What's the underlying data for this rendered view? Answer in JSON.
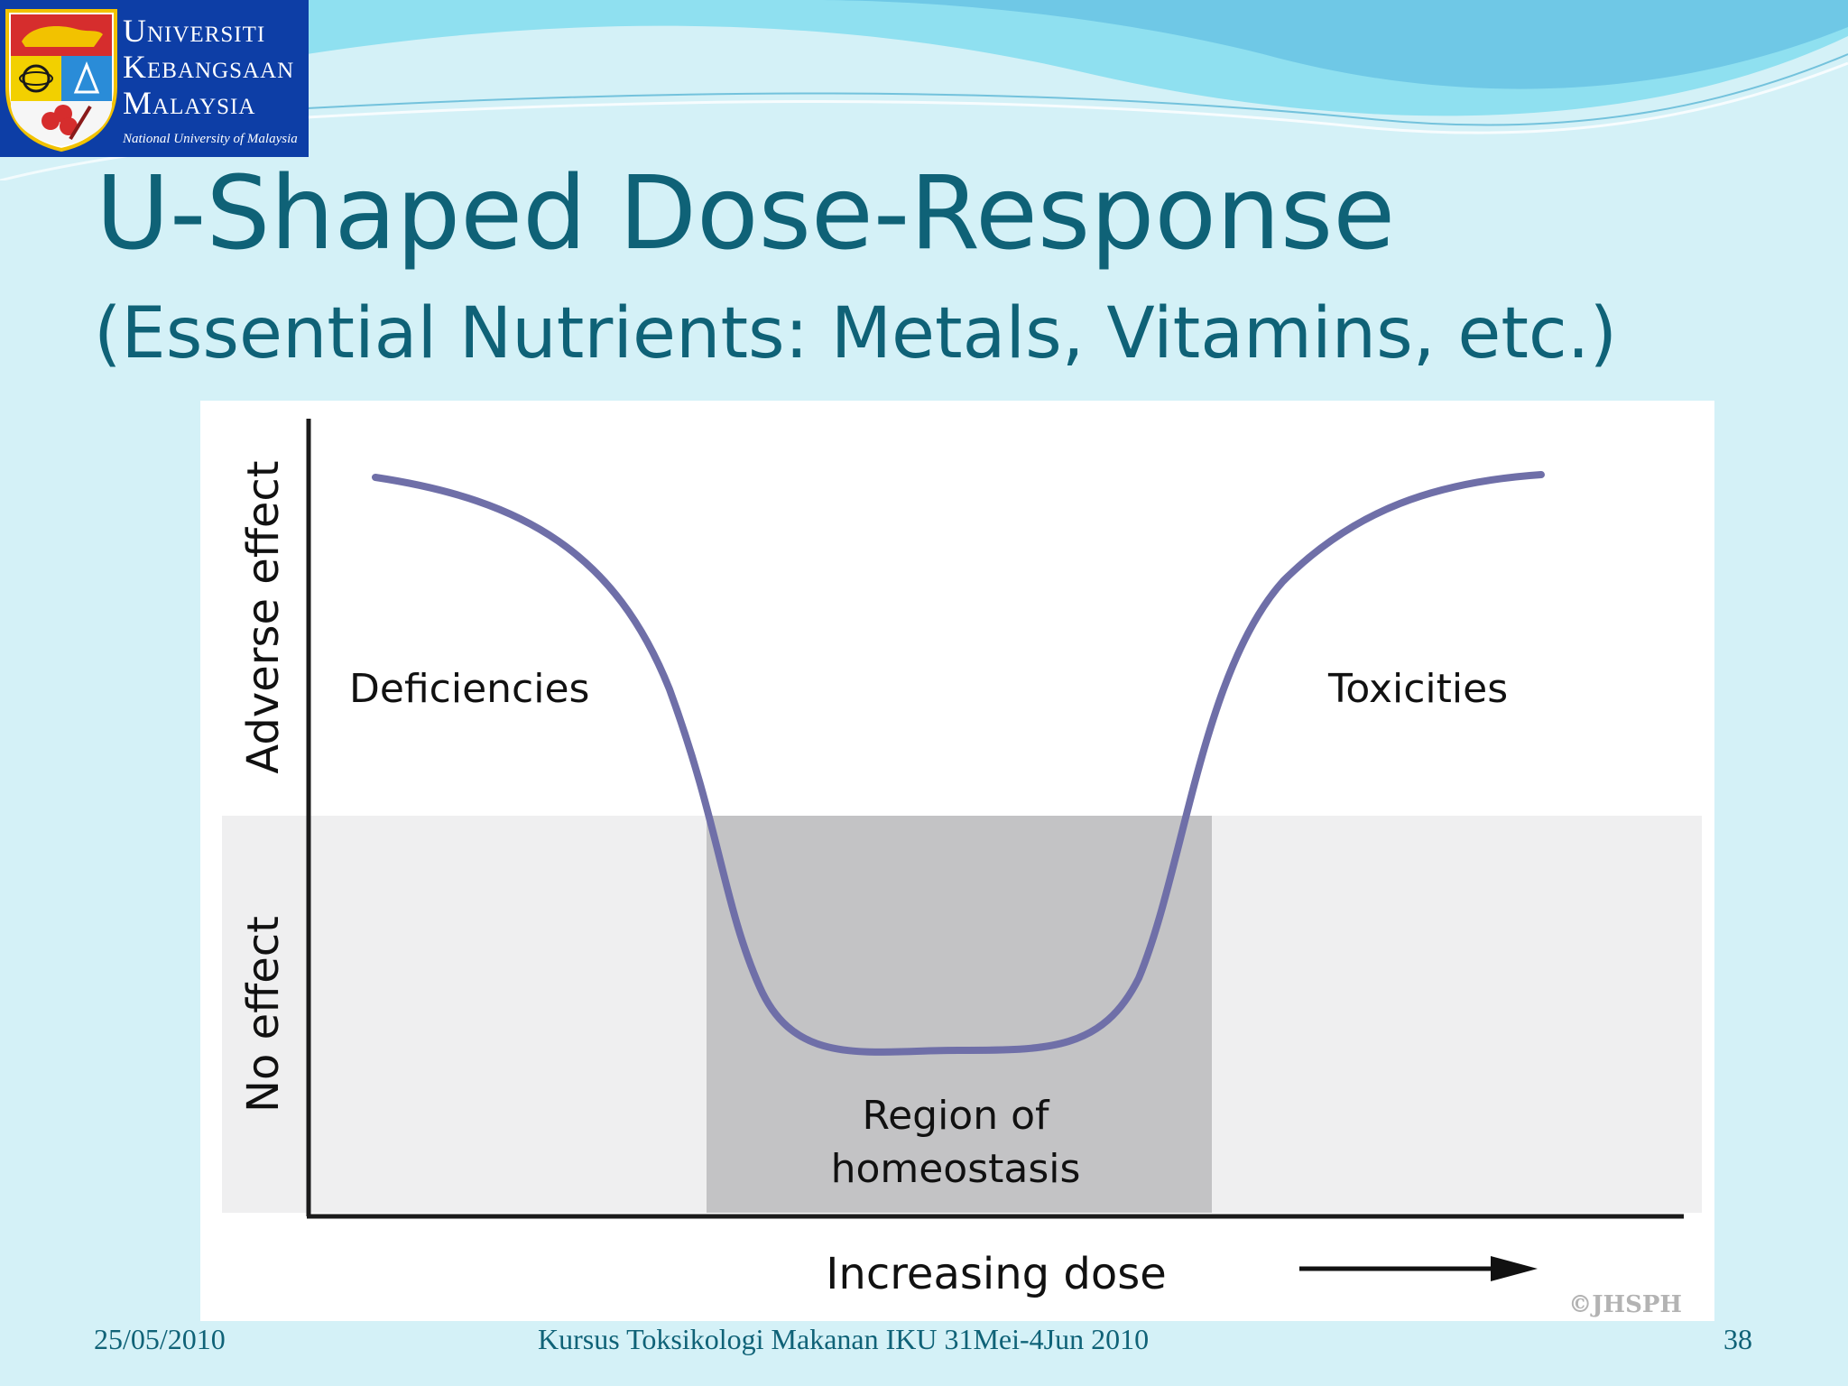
{
  "logo": {
    "line1": "Universiti",
    "line2": "Kebangsaan",
    "line3": "Malaysia",
    "subtitle": "National University of Malaysia"
  },
  "title": "U-Shaped Dose-Response",
  "subtitle": "(Essential Nutrients: Metals, Vitamins, etc.)",
  "diagram": {
    "y_label_top": "Adverse effect",
    "y_label_bottom": "No effect",
    "left_label": "Deficiencies",
    "right_label": "Toxicities",
    "center_label_line1": "Region of",
    "center_label_line2": "homeostasis",
    "x_label": "Increasing dose",
    "credit": "©JHSPH",
    "colors": {
      "curve": "#6f6fa8",
      "no_effect_band": "#efeff0",
      "homeostasis_band": "#c3c3c5",
      "axis": "#1b1b1b"
    }
  },
  "footer": {
    "date": "25/05/2010",
    "course": "Kursus Toksikologi Makanan IKU 31Mei-4Jun 2010",
    "page": "38"
  },
  "theme": {
    "title_color": "#0f6277",
    "background": "#d4f1f7"
  }
}
